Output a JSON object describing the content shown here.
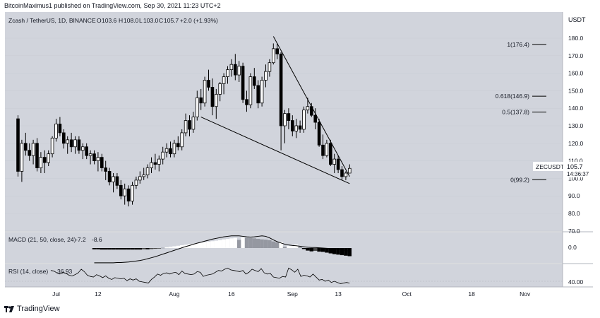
{
  "publish_info": "BitcoinMaximus1 published on TradingView.com, Sep 30, 2021 11:23 UTC+2",
  "branding": {
    "label": "TradingView",
    "icon": "tradingview-logo-icon"
  },
  "colors": {
    "background": "#d1d4dc",
    "candle_up_fill": "#ffffff",
    "candle_down_fill": "#000000",
    "candle_border": "#000000",
    "line": "#000000",
    "gridline": "#e0e3eb",
    "label_box": "#ffffff"
  },
  "main_pane": {
    "symbol_info": "Zcash / TetherUS, 1D, BINANCE",
    "ohlc": {
      "open_label": "O",
      "open": "103.6",
      "high_label": "H",
      "high": "108.0",
      "low_label": "L",
      "low": "103.0",
      "close_label": "C",
      "close": "105.7",
      "change": "+2.0 (+1.93%)"
    },
    "currency": "USDT",
    "y_ticks": [
      180.0,
      170.0,
      160.0,
      150.0,
      140.0,
      130.0,
      120.0,
      110.0,
      100.0,
      90.0,
      80.0,
      70.0
    ],
    "y_tick_labels": [
      "180.0",
      "170.0",
      "160.0",
      "150.0",
      "140.0",
      "130.0",
      "120.0",
      "110.0",
      "100.0",
      "90.0",
      "80.0",
      "70.0"
    ],
    "ylim": [
      70,
      187
    ],
    "price_tag": {
      "symbol": "ZECUSDT",
      "price": "105.7",
      "countdown": "14:36:37",
      "value": 105.7
    },
    "fib_levels": [
      {
        "label": "1(176.4)",
        "value": 176.4
      },
      {
        "label": "0.618(146.9)",
        "value": 146.9
      },
      {
        "label": "0.5(137.8)",
        "value": 137.8
      },
      {
        "label": "0(99.2)",
        "value": 99.2
      }
    ]
  },
  "macd_pane": {
    "label": "MACD (21, 50, close, 24)",
    "value_1": "-7.2",
    "value_2": "-8.6",
    "y_tick_labels": [
      "0.0"
    ]
  },
  "rsi_pane": {
    "label": "RSI (14, close)",
    "value": "36.93",
    "y_tick_labels": [
      "40.00"
    ]
  },
  "x_axis": {
    "ticks": [
      {
        "label": "Jul",
        "day": 0
      },
      {
        "label": "12",
        "day": 11
      },
      {
        "label": "Aug",
        "day": 31
      },
      {
        "label": "16",
        "day": 46
      },
      {
        "label": "Sep",
        "day": 62
      },
      {
        "label": "13",
        "day": 74
      },
      {
        "label": "Oct",
        "day": 92
      },
      {
        "label": "18",
        "day": 109
      },
      {
        "label": "Nov",
        "day": 123
      }
    ]
  },
  "chart_data": {
    "type": "candlestick",
    "title": "Zcash / TetherUS, 1D, BINANCE",
    "ylabel": "USDT",
    "ylim": [
      70,
      187
    ],
    "x_axis_unit": "days since Jul 1, 2021",
    "candles": [
      [
        -10,
        134,
        136,
        101,
        104
      ],
      [
        -9,
        104,
        122,
        98,
        120
      ],
      [
        -8,
        120,
        126,
        113,
        116
      ],
      [
        -7,
        116,
        120,
        110,
        113
      ],
      [
        -6,
        113,
        122,
        108,
        120
      ],
      [
        -5,
        120,
        123,
        104,
        106
      ],
      [
        -4,
        106,
        115,
        103,
        112
      ],
      [
        -3,
        112,
        116,
        103,
        109
      ],
      [
        -2,
        109,
        116,
        107,
        114
      ],
      [
        -1,
        114,
        124,
        112,
        123
      ],
      [
        0,
        123,
        134,
        121,
        131
      ],
      [
        1,
        131,
        135,
        124,
        126
      ],
      [
        2,
        126,
        128,
        117,
        120
      ],
      [
        3,
        120,
        124,
        114,
        122
      ],
      [
        4,
        122,
        126,
        115,
        118
      ],
      [
        5,
        118,
        124,
        114,
        122
      ],
      [
        6,
        122,
        124,
        114,
        116
      ],
      [
        7,
        116,
        120,
        111,
        118
      ],
      [
        8,
        118,
        120,
        111,
        113
      ],
      [
        9,
        113,
        116,
        108,
        114
      ],
      [
        10,
        114,
        116,
        108,
        110
      ],
      [
        11,
        110,
        115,
        104,
        112
      ],
      [
        12,
        112,
        114,
        104,
        106
      ],
      [
        13,
        106,
        110,
        99,
        104
      ],
      [
        14,
        104,
        106,
        96,
        98
      ],
      [
        15,
        98,
        103,
        92,
        101
      ],
      [
        16,
        101,
        103,
        94,
        96
      ],
      [
        17,
        96,
        99,
        88,
        90
      ],
      [
        18,
        90,
        97,
        85,
        94
      ],
      [
        19,
        94,
        96,
        84,
        87
      ],
      [
        20,
        87,
        98,
        85,
        96
      ],
      [
        21,
        96,
        101,
        94,
        99
      ],
      [
        22,
        99,
        104,
        97,
        101
      ],
      [
        23,
        101,
        106,
        99,
        102
      ],
      [
        24,
        102,
        108,
        100,
        106
      ],
      [
        25,
        106,
        112,
        103,
        109
      ],
      [
        26,
        109,
        114,
        105,
        108
      ],
      [
        27,
        108,
        113,
        104,
        111
      ],
      [
        28,
        111,
        118,
        108,
        115
      ],
      [
        29,
        115,
        120,
        112,
        117
      ],
      [
        30,
        117,
        121,
        112,
        114
      ],
      [
        31,
        114,
        122,
        112,
        120
      ],
      [
        32,
        120,
        124,
        116,
        118
      ],
      [
        33,
        118,
        128,
        116,
        126
      ],
      [
        34,
        126,
        137,
        124,
        133
      ],
      [
        35,
        133,
        136,
        124,
        128
      ],
      [
        36,
        128,
        138,
        126,
        135
      ],
      [
        37,
        135,
        150,
        133,
        146
      ],
      [
        38,
        146,
        151,
        139,
        143
      ],
      [
        39,
        143,
        158,
        141,
        156
      ],
      [
        40,
        156,
        162,
        150,
        152
      ],
      [
        41,
        152,
        157,
        136,
        141
      ],
      [
        42,
        141,
        151,
        134,
        148
      ],
      [
        43,
        148,
        155,
        144,
        154
      ],
      [
        44,
        154,
        160,
        148,
        158
      ],
      [
        45,
        158,
        164,
        154,
        162
      ],
      [
        46,
        162,
        168,
        158,
        165
      ],
      [
        47,
        165,
        171,
        156,
        159
      ],
      [
        48,
        159,
        167,
        155,
        164
      ],
      [
        49,
        164,
        166,
        143,
        145
      ],
      [
        50,
        145,
        150,
        138,
        142
      ],
      [
        51,
        142,
        160,
        140,
        158
      ],
      [
        52,
        158,
        163,
        151,
        153
      ],
      [
        53,
        153,
        156,
        140,
        143
      ],
      [
        54,
        143,
        158,
        141,
        156
      ],
      [
        55,
        156,
        165,
        152,
        161
      ],
      [
        56,
        161,
        168,
        158,
        166
      ],
      [
        57,
        166,
        177,
        165,
        174
      ],
      [
        58,
        174,
        177,
        168,
        171
      ],
      [
        59,
        171,
        172,
        116,
        130
      ],
      [
        60,
        130,
        139,
        120,
        137
      ],
      [
        61,
        137,
        140,
        128,
        133
      ],
      [
        62,
        133,
        136,
        124,
        127
      ],
      [
        63,
        127,
        134,
        123,
        130
      ],
      [
        64,
        130,
        133,
        126,
        128
      ],
      [
        65,
        128,
        141,
        126,
        139
      ],
      [
        66,
        139,
        146,
        137,
        141
      ],
      [
        67,
        141,
        143,
        135,
        136
      ],
      [
        68,
        136,
        140,
        128,
        132
      ],
      [
        69,
        132,
        134,
        118,
        119
      ],
      [
        70,
        119,
        125,
        111,
        113
      ],
      [
        71,
        113,
        122,
        112,
        120
      ],
      [
        72,
        120,
        122,
        107,
        108
      ],
      [
        73,
        108,
        114,
        103,
        111
      ],
      [
        74,
        111,
        113,
        103,
        105
      ],
      [
        75,
        105,
        107,
        99,
        101
      ],
      [
        76,
        101,
        104,
        99,
        103
      ],
      [
        77,
        103,
        108,
        103,
        105.7
      ]
    ],
    "trendlines": [
      {
        "name": "resistance",
        "from": [
          57,
          181
        ],
        "to": [
          77,
          101
        ]
      },
      {
        "name": "support",
        "from": [
          38,
          135
        ],
        "to": [
          77,
          97
        ]
      }
    ],
    "macd": {
      "histogram": [
        -0.5,
        -0.5,
        -0.6,
        -0.6,
        -0.6,
        -0.6,
        -0.6,
        -0.6,
        -0.6,
        -0.6,
        -0.6,
        -0.6,
        -0.6,
        -0.5,
        -0.5,
        -0.4,
        -0.3,
        -0.2,
        0.1,
        0.3,
        0.5,
        0.7,
        0.9,
        1.1,
        1.3,
        1.5,
        1.7,
        1.9,
        2.1,
        2.3,
        2.5,
        2.7,
        2.9,
        3.1,
        3.4,
        3.6,
        3.8,
        4.0,
        3.2,
        4.2,
        4.0,
        3.9,
        3.8,
        3.6,
        3.4,
        3.3,
        3.1,
        2.6,
        2.2,
        2.4,
        0.5,
        0.8,
        1.1,
        1.4,
        0.4,
        -0.4,
        -1.0,
        -1.3,
        -1.1,
        -1.4,
        -1.5,
        -1.8,
        -2.1,
        -2.4,
        -2.6,
        -2.8,
        -3.0,
        -3.2
      ],
      "line": [
        -5.8,
        -5.8,
        -5.8,
        -5.8,
        -5.8,
        -5.8,
        -5.7,
        -5.7,
        -5.6,
        -5.5,
        -5.3,
        -5.1,
        -4.9,
        -4.6,
        -4.2,
        -3.8,
        -3.4,
        -2.9,
        -2.4,
        -1.9,
        -1.4,
        -0.9,
        -0.4,
        0.1,
        0.6,
        1.0,
        1.5,
        1.9,
        2.3,
        2.7,
        3.1,
        3.5,
        3.8,
        4.1,
        4.4,
        4.6,
        4.8,
        4.8,
        4.8,
        4.6,
        4.4,
        4.3,
        4.4,
        4.6,
        4.8,
        4.6,
        4.0,
        3.2,
        2.5,
        2.0,
        1.5,
        1.2,
        1.0,
        0.9,
        0.7,
        0.5,
        0.3,
        0.2,
        0.2,
        0.1,
        0.0,
        -0.1,
        -0.2,
        -0.3,
        -0.5,
        -0.7,
        -1.0,
        -1.2
      ]
    },
    "rsi": [
      58,
      57,
      54,
      52,
      55,
      53,
      50,
      49,
      51,
      54,
      60,
      56,
      50,
      48,
      47,
      51,
      49,
      46,
      49,
      45,
      43,
      46,
      45,
      44,
      45,
      41,
      44,
      42,
      44,
      40,
      39,
      38,
      37,
      43,
      47,
      52,
      50,
      53,
      54,
      52,
      54,
      55,
      51,
      57,
      53,
      52,
      51,
      52,
      56,
      55,
      48,
      50,
      51,
      52,
      55,
      58,
      57,
      60,
      62,
      59,
      58,
      57,
      56,
      58,
      52,
      55,
      60,
      58,
      56,
      61,
      54,
      52,
      53,
      47,
      46,
      45,
      48,
      47,
      62,
      59,
      55,
      60,
      48,
      50,
      49,
      47,
      52,
      47,
      42,
      43,
      40,
      42,
      38,
      40,
      38,
      36,
      37,
      38,
      36.93
    ]
  }
}
